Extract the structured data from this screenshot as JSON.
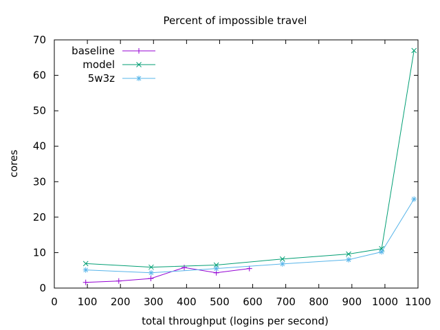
{
  "chart_data": {
    "type": "line",
    "title": "Percent of impossible travel",
    "xlabel": "total throughput (logins per second)",
    "ylabel": "cores",
    "xlim": [
      0,
      1100
    ],
    "ylim": [
      0,
      70
    ],
    "xticks": [
      0,
      100,
      200,
      300,
      400,
      500,
      600,
      700,
      800,
      900,
      1000,
      1100
    ],
    "yticks": [
      0,
      10,
      20,
      30,
      40,
      50,
      60,
      70
    ],
    "grid": false,
    "legend_position": "top-left",
    "series": [
      {
        "name": "baseline",
        "color": "#9400d3",
        "marker": "plus",
        "x": [
          95,
          195,
          292,
          393,
          490,
          590
        ],
        "y": [
          1.6,
          2.0,
          2.7,
          5.8,
          4.3,
          5.5
        ]
      },
      {
        "name": "model",
        "color": "#009e73",
        "marker": "cross",
        "x": [
          95,
          293,
          490,
          690,
          890,
          990,
          1088
        ],
        "y": [
          6.9,
          5.9,
          6.5,
          8.2,
          9.6,
          11.1,
          67.0
        ]
      },
      {
        "name": "5w3z",
        "color": "#56b4e9",
        "marker": "star",
        "x": [
          95,
          293,
          490,
          690,
          890,
          990,
          1088
        ],
        "y": [
          5.1,
          4.3,
          5.5,
          6.8,
          8.0,
          10.2,
          25.1
        ]
      }
    ]
  }
}
